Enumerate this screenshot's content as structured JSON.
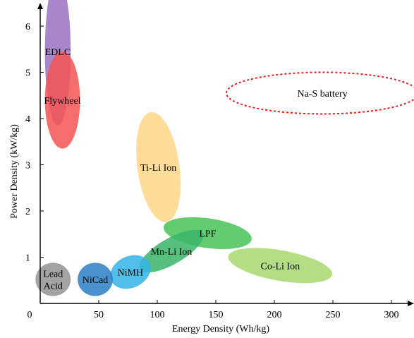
{
  "chart_data": {
    "type": "scatter",
    "title": "",
    "xlabel": "Energy Density (Wh/kg)",
    "ylabel": "Power Density (kW/kg)",
    "xlim": [
      0,
      320
    ],
    "ylim": [
      0,
      6.5
    ],
    "x_ticks": [
      50,
      100,
      150,
      200,
      250,
      300
    ],
    "y_ticks": [
      1,
      2,
      3,
      4,
      5,
      6
    ],
    "origin_label": "0",
    "grid": false,
    "legend": "none",
    "regions": [
      {
        "name": "EDLC",
        "label_lines": [
          "EDLC"
        ],
        "cx": 15,
        "cy": 5.45,
        "rx": 11,
        "ry": 1.6,
        "angle": 0,
        "color": "#9467bd",
        "opacity": 0.8,
        "dashed": false
      },
      {
        "name": "Flywheel",
        "label_lines": [
          "Flywheel"
        ],
        "cx": 19,
        "cy": 4.4,
        "rx": 15,
        "ry": 1.05,
        "angle": 0,
        "color": "#f55454",
        "opacity": 0.85,
        "dashed": false
      },
      {
        "name": "Na-S battery",
        "label_lines": [
          "Na-S battery"
        ],
        "cx": 241,
        "cy": 4.55,
        "rx": 82,
        "ry": 0.45,
        "angle": 0,
        "color": "#e02020",
        "opacity": 0,
        "dashed": true
      },
      {
        "name": "Ti-Li Ion",
        "label_lines": [
          "Ti-Li Ion"
        ],
        "cx": 101,
        "cy": 2.95,
        "rx": 18,
        "ry": 1.2,
        "angle": -8,
        "color": "#ffd580",
        "opacity": 0.8,
        "dashed": false
      },
      {
        "name": "LPF",
        "label_lines": [
          "LPF"
        ],
        "cx": 143,
        "cy": 1.52,
        "rx": 38,
        "ry": 0.32,
        "angle": 8,
        "color": "#3cbf4d",
        "opacity": 0.8,
        "dashed": false
      },
      {
        "name": "Mn-Li Ion",
        "label_lines": [
          "Mn-Li Ion"
        ],
        "cx": 112,
        "cy": 1.13,
        "rx": 31,
        "ry": 0.28,
        "angle": -30,
        "color": "#3ab56a",
        "opacity": 0.85,
        "dashed": false
      },
      {
        "name": "Co-Li Ion",
        "label_lines": [
          "Co-Li Ion"
        ],
        "cx": 205,
        "cy": 0.82,
        "rx": 45,
        "ry": 0.33,
        "angle": 10,
        "color": "#a8d86e",
        "opacity": 0.85,
        "dashed": false
      },
      {
        "name": "NiMH",
        "label_lines": [
          "NiMH"
        ],
        "cx": 77,
        "cy": 0.68,
        "rx": 18,
        "ry": 0.34,
        "angle": -25,
        "color": "#34b4e8",
        "opacity": 0.85,
        "dashed": false
      },
      {
        "name": "NiCad",
        "label_lines": [
          "NiCad"
        ],
        "cx": 47,
        "cy": 0.52,
        "rx": 15,
        "ry": 0.36,
        "angle": 0,
        "color": "#2a7fc4",
        "opacity": 0.85,
        "dashed": false
      },
      {
        "name": "Lead Acid",
        "label_lines": [
          "Lead",
          "Acid"
        ],
        "cx": 11,
        "cy": 0.52,
        "rx": 15,
        "ry": 0.36,
        "angle": 0,
        "color": "#999999",
        "opacity": 0.9,
        "dashed": false
      }
    ]
  }
}
